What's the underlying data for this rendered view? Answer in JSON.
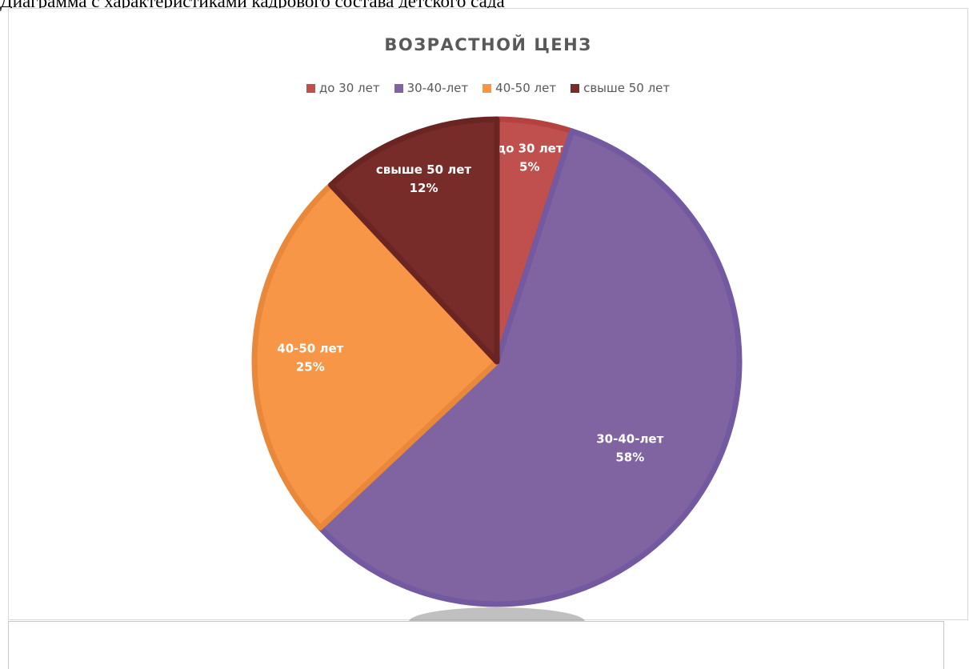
{
  "document": {
    "caption": "Диаграмма с характеристиками кадрового состава детского сада"
  },
  "chart_data": {
    "type": "pie",
    "title": "ВОЗРАСТНОЙ ЦЕНЗ",
    "legend_position": "top",
    "categories": [
      "до 30 лет",
      "30-40-лет",
      "40-50 лет",
      "свыше 50 лет"
    ],
    "values": [
      5,
      58,
      25,
      12
    ],
    "labels": [
      "5%",
      "58%",
      "25%",
      "12%"
    ],
    "colors": [
      "#c0504d",
      "#8064a2",
      "#f79646",
      "#772c2a"
    ],
    "border_colors": [
      "#b5423f",
      "#7259a0",
      "#e9873a",
      "#6a2523"
    ]
  }
}
